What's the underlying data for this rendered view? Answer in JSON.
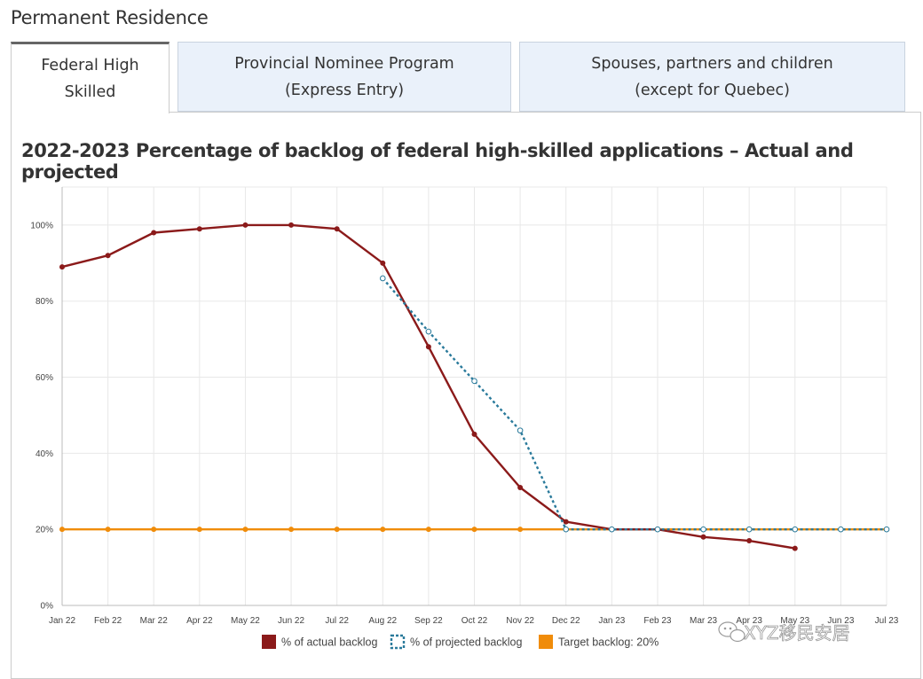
{
  "page": {
    "heading": "Permanent Residence"
  },
  "tabs": [
    {
      "line1": "Federal High",
      "line2": "Skilled",
      "active": true
    },
    {
      "line1": "Provincial Nominee Program",
      "line2": "(Express Entry)",
      "active": false
    },
    {
      "line1": "Spouses, partners and children",
      "line2": "(except for Quebec)",
      "active": false
    }
  ],
  "watermark": {
    "text": "XYZ移民安居",
    "icon": "wechat-icon"
  },
  "colors": {
    "actual": "#8b1a1a",
    "projected": "#2a7a9b",
    "target": "#f08c0a",
    "grid": "#e8e8e8"
  },
  "chart_data": {
    "type": "line",
    "title": "2022-2023 Percentage of backlog of federal high-skilled applications – Actual and projected",
    "categories": [
      "Jan 22",
      "Feb 22",
      "Mar 22",
      "Apr 22",
      "May 22",
      "Jun 22",
      "Jul 22",
      "Aug 22",
      "Sep 22",
      "Oct 22",
      "Nov 22",
      "Dec 22",
      "Jan 23",
      "Feb 23",
      "Mar 23",
      "Apr 23",
      "May 23",
      "Jun 23",
      "Jul 23"
    ],
    "yticks": [
      "0%",
      "20%",
      "40%",
      "60%",
      "80%",
      "100%"
    ],
    "ylim": [
      0,
      110
    ],
    "series": [
      {
        "name": "% of actual backlog",
        "style": "solid",
        "values": [
          89,
          92,
          98,
          99,
          100,
          100,
          99,
          90,
          68,
          45,
          31,
          22,
          20,
          20,
          18,
          17,
          15,
          null,
          null
        ]
      },
      {
        "name": "% of projected backlog",
        "style": "dotted",
        "values": [
          null,
          null,
          null,
          null,
          null,
          null,
          null,
          86,
          72,
          59,
          46,
          20,
          20,
          20,
          20,
          20,
          20,
          20,
          20
        ]
      },
      {
        "name": "Target backlog: 20%",
        "style": "solid",
        "values": [
          20,
          20,
          20,
          20,
          20,
          20,
          20,
          20,
          20,
          20,
          20,
          20,
          20,
          20,
          20,
          20,
          20,
          20,
          20
        ]
      }
    ]
  }
}
